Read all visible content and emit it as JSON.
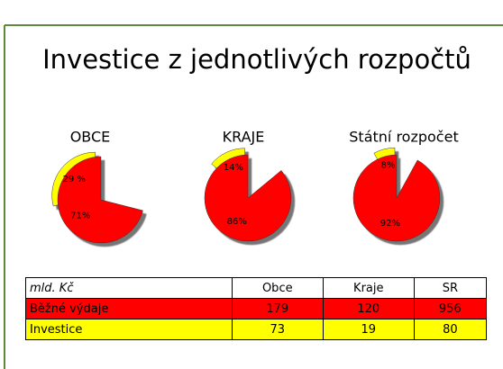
{
  "title": "Investice z jednotlivých rozpočtů",
  "chart_data": [
    {
      "type": "pie",
      "title": "OBCE",
      "values": [
        29,
        71
      ],
      "value_labels": [
        "29 %",
        "71%"
      ],
      "colors": [
        "#ffff00",
        "#ff0000"
      ],
      "explode": [
        true,
        false
      ]
    },
    {
      "type": "pie",
      "title": "KRAJE",
      "values": [
        14,
        86
      ],
      "value_labels": [
        "14%",
        "86%"
      ],
      "colors": [
        "#ffff00",
        "#ff0000"
      ],
      "explode": [
        true,
        false
      ]
    },
    {
      "type": "pie",
      "title": "Státní rozpočet",
      "values": [
        8,
        92
      ],
      "value_labels": [
        "8%",
        "92%"
      ],
      "colors": [
        "#ffff00",
        "#ff0000"
      ],
      "explode": [
        true,
        false
      ]
    }
  ],
  "table": {
    "header": [
      "mld. Kč",
      "Obce",
      "Kraje",
      "SR"
    ],
    "rows": [
      [
        "Běžné výdaje",
        179,
        120,
        956
      ],
      [
        "Investice",
        73,
        19,
        80
      ]
    ],
    "row_colors": [
      "#ff0000",
      "#ffff00"
    ]
  }
}
